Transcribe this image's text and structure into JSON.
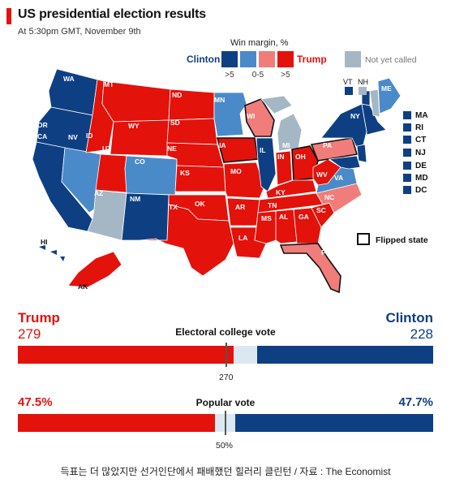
{
  "header": {
    "title": "US presidential election results",
    "subtitle": "At 5:30pm GMT, November 9th"
  },
  "legend": {
    "title": "Win margin, %",
    "clinton_label": "Clinton",
    "trump_label": "Trump",
    "not_called_label": "Not yet called",
    "bin_gt5_left": ">5",
    "bin_0_5": "0-5",
    "bin_gt5_right": ">5",
    "flipped_label": "Flipped state",
    "vt_label": "VT",
    "nh_label": "NH"
  },
  "colors": {
    "clinton_strong": "#0e3f83",
    "clinton_lean": "#4a8ac9",
    "trump_lean": "#f07d7a",
    "trump_strong": "#e3120b",
    "not_called": "#a5b7c4"
  },
  "map": {
    "states": [
      {
        "abbr": "WA"
      },
      {
        "abbr": "OR"
      },
      {
        "abbr": "CA"
      },
      {
        "abbr": "NV"
      },
      {
        "abbr": "ID"
      },
      {
        "abbr": "MT"
      },
      {
        "abbr": "WY"
      },
      {
        "abbr": "UT"
      },
      {
        "abbr": "AZ"
      },
      {
        "abbr": "CO"
      },
      {
        "abbr": "NM"
      },
      {
        "abbr": "ND"
      },
      {
        "abbr": "SD"
      },
      {
        "abbr": "NE"
      },
      {
        "abbr": "KS"
      },
      {
        "abbr": "OK"
      },
      {
        "abbr": "TX"
      },
      {
        "abbr": "MN"
      },
      {
        "abbr": "IA"
      },
      {
        "abbr": "MO"
      },
      {
        "abbr": "AR"
      },
      {
        "abbr": "LA"
      },
      {
        "abbr": "WI"
      },
      {
        "abbr": "IL"
      },
      {
        "abbr": "MI"
      },
      {
        "abbr": "IN"
      },
      {
        "abbr": "OH"
      },
      {
        "abbr": "KY"
      },
      {
        "abbr": "TN"
      },
      {
        "abbr": "MS"
      },
      {
        "abbr": "AL"
      },
      {
        "abbr": "GA"
      },
      {
        "abbr": "FL"
      },
      {
        "abbr": "SC"
      },
      {
        "abbr": "NC"
      },
      {
        "abbr": "VA"
      },
      {
        "abbr": "WV"
      },
      {
        "abbr": "PA"
      },
      {
        "abbr": "NY"
      },
      {
        "abbr": "ME"
      },
      {
        "abbr": "HI"
      },
      {
        "abbr": "AK"
      }
    ],
    "small_states": [
      "MA",
      "RI",
      "CT",
      "NJ",
      "DE",
      "MD",
      "DC"
    ]
  },
  "results": {
    "trump_name": "Trump",
    "clinton_name": "Clinton",
    "trump_ev": "279",
    "clinton_ev": "228",
    "ev_title": "Electoral college vote",
    "ev_threshold": "270",
    "ev_trump_value": 279,
    "ev_clinton_value": 228,
    "ev_total": 538,
    "trump_popular": "47.5%",
    "clinton_popular": "47.7%",
    "popular_title": "Popular vote",
    "popular_midpoint": "50%",
    "pop_trump_value": 47.5,
    "pop_clinton_value": 47.7
  },
  "caption": "득표는 더 많았지만 선거인단에서 패배했던 힐러리 클린턴 / 자료 : The Economist"
}
